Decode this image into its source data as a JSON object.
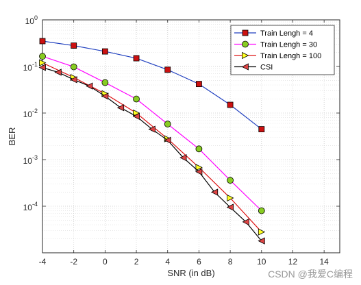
{
  "watermark": "CSDN @我爱C编程",
  "chart_data": {
    "type": "line",
    "xlabel": "SNR (in dB)",
    "ylabel": "BER",
    "xlim": [
      -4,
      15
    ],
    "ylim": [
      1e-05,
      1
    ],
    "yscale": "log",
    "grid": true,
    "minor_grid": true,
    "legend_position": "top-right",
    "x_ticks": [
      -4,
      -2,
      0,
      2,
      4,
      6,
      8,
      10,
      12,
      14
    ],
    "y_ticks": [
      {
        "value": 1,
        "base": "10",
        "exp": "0"
      },
      {
        "value": 0.1,
        "base": "10",
        "exp": "-1"
      },
      {
        "value": 0.01,
        "base": "10",
        "exp": "-2"
      },
      {
        "value": 0.001,
        "base": "10",
        "exp": "-3"
      },
      {
        "value": 0.0001,
        "base": "10",
        "exp": "-4"
      }
    ],
    "series": [
      {
        "name": "Train Lengh = 4",
        "color": "#1f3fbf",
        "marker": "square",
        "marker_fill": "#cc1111",
        "x": [
          -4,
          -2,
          0,
          2,
          4,
          6,
          8,
          10
        ],
        "y": [
          0.35,
          0.28,
          0.21,
          0.15,
          0.085,
          0.042,
          0.015,
          0.0045
        ]
      },
      {
        "name": "Train Lengh = 30",
        "color": "#ff00ff",
        "marker": "circle",
        "marker_fill": "#88cc22",
        "x": [
          -4,
          -2,
          0,
          2,
          4,
          6,
          8,
          10
        ],
        "y": [
          0.165,
          0.098,
          0.045,
          0.02,
          0.0058,
          0.0017,
          0.00036,
          8e-05
        ]
      },
      {
        "name": "Train Lengh = 100",
        "color": "#dd1111",
        "marker": "triangle-right",
        "marker_fill": "#ffff22",
        "x": [
          -4,
          -2,
          0,
          2,
          4,
          6,
          8,
          10
        ],
        "y": [
          0.12,
          0.058,
          0.026,
          0.01,
          0.0028,
          0.00068,
          0.00015,
          2.8e-05
        ]
      },
      {
        "name": "CSI",
        "color": "#000000",
        "marker": "triangle-left",
        "marker_fill": "#dd4444",
        "x": [
          -4,
          -3,
          -2,
          -1,
          0,
          1,
          2,
          3,
          4,
          5,
          6,
          7,
          8,
          9,
          10
        ],
        "y": [
          0.095,
          0.075,
          0.052,
          0.038,
          0.023,
          0.013,
          0.0085,
          0.0045,
          0.0026,
          0.0011,
          0.00055,
          0.0002,
          9.5e-05,
          4.6e-05,
          1.8e-05
        ]
      }
    ]
  }
}
